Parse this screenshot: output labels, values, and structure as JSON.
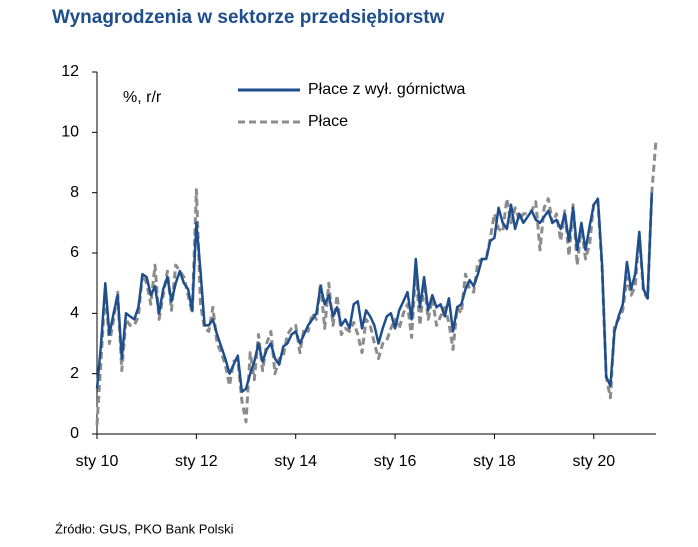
{
  "chart_data": {
    "type": "line",
    "title": "Wynagrodzenia w sektorze przedsiębiorstw",
    "y_label": "%, r/r",
    "source": "Źródło: GUS, PKO Bank Polski",
    "categories": [
      "sty 10",
      null,
      null,
      null,
      null,
      null,
      null,
      null,
      null,
      null,
      null,
      null,
      null,
      null,
      null,
      null,
      null,
      null,
      null,
      null,
      null,
      null,
      null,
      null,
      "sty 12",
      null,
      null,
      null,
      null,
      null,
      null,
      null,
      null,
      null,
      null,
      null,
      null,
      null,
      null,
      null,
      null,
      null,
      null,
      null,
      null,
      null,
      null,
      null,
      "sty 14",
      null,
      null,
      null,
      null,
      null,
      null,
      null,
      null,
      null,
      null,
      null,
      null,
      null,
      null,
      null,
      null,
      null,
      null,
      null,
      null,
      null,
      null,
      null,
      "sty 16",
      null,
      null,
      null,
      null,
      null,
      null,
      null,
      null,
      null,
      null,
      null,
      null,
      null,
      null,
      null,
      null,
      null,
      null,
      null,
      null,
      null,
      null,
      null,
      "sty 18",
      null,
      null,
      null,
      null,
      null,
      null,
      null,
      null,
      null,
      null,
      null,
      null,
      null,
      null,
      null,
      null,
      null,
      null,
      null,
      null,
      null,
      null,
      null,
      "sty 20",
      null,
      null,
      null,
      null,
      null,
      null,
      null,
      null,
      null,
      null,
      null,
      null,
      null,
      null,
      null
    ],
    "series": [
      {
        "name": "Płace z wył. górnictwa",
        "color": "#1f4e8c",
        "dash": false,
        "values": [
          1.5,
          3.0,
          5.0,
          3.3,
          4.0,
          4.6,
          2.5,
          4.0,
          3.9,
          3.8,
          4.2,
          5.3,
          5.2,
          4.6,
          4.9,
          4.0,
          4.8,
          5.2,
          4.4,
          5.0,
          5.4,
          5.0,
          4.8,
          4.1,
          7.0,
          5.4,
          3.6,
          3.6,
          3.8,
          3.3,
          2.9,
          2.5,
          2.0,
          2.3,
          2.6,
          1.4,
          1.5,
          2.0,
          2.4,
          3.0,
          2.4,
          2.8,
          3.0,
          2.5,
          2.3,
          2.9,
          3.0,
          3.3,
          3.4,
          3.0,
          3.3,
          3.6,
          3.8,
          4.0,
          4.9,
          4.3,
          4.6,
          3.9,
          4.2,
          3.6,
          3.8,
          3.5,
          4.3,
          4.4,
          3.5,
          4.1,
          3.9,
          3.6,
          3.0,
          3.5,
          3.9,
          4.0,
          3.5,
          4.1,
          4.4,
          4.7,
          3.8,
          5.8,
          4.2,
          5.2,
          4.1,
          4.6,
          4.2,
          4.3,
          3.9,
          4.5,
          3.4,
          4.2,
          4.3,
          4.8,
          5.1,
          4.9,
          5.3,
          5.8,
          5.8,
          6.4,
          6.5,
          7.5,
          7.0,
          6.8,
          7.6,
          6.8,
          7.3,
          7.0,
          7.2,
          7.4,
          7.1,
          7.0,
          7.2,
          7.4,
          7.0,
          7.1,
          6.8,
          7.3,
          6.4,
          7.5,
          6.1,
          7.0,
          6.1,
          6.9,
          7.6,
          7.8,
          5.6,
          1.9,
          1.6,
          3.4,
          3.9,
          4.3,
          5.7,
          4.8,
          5.3,
          6.7,
          4.8,
          4.5,
          8.0,
          null
        ]
      },
      {
        "name": "Płace",
        "color": "#8c8c8c",
        "dash": true,
        "values": [
          0.3,
          2.5,
          4.8,
          3.0,
          3.8,
          4.7,
          2.1,
          3.8,
          3.6,
          3.6,
          3.9,
          5.3,
          5.0,
          4.3,
          5.6,
          3.8,
          4.6,
          5.4,
          4.1,
          5.6,
          5.4,
          5.2,
          4.6,
          4.0,
          8.1,
          4.3,
          3.5,
          3.4,
          4.2,
          3.0,
          2.7,
          2.3,
          1.6,
          2.4,
          2.5,
          1.1,
          0.4,
          2.7,
          1.8,
          3.3,
          2.1,
          3.0,
          3.4,
          2.0,
          2.5,
          2.6,
          3.3,
          3.5,
          3.6,
          2.7,
          3.5,
          3.4,
          4.0,
          3.8,
          5.0,
          3.5,
          5.0,
          3.6,
          4.6,
          3.3,
          3.5,
          3.4,
          3.7,
          3.3,
          2.7,
          3.8,
          3.6,
          3.0,
          2.5,
          3.0,
          3.1,
          3.5,
          3.8,
          3.5,
          4.0,
          4.3,
          3.2,
          5.5,
          3.6,
          5.0,
          3.8,
          4.5,
          3.6,
          3.9,
          4.2,
          3.7,
          2.8,
          4.2,
          4.0,
          5.3,
          4.8,
          4.7,
          5.7,
          5.8,
          5.8,
          6.5,
          7.3,
          6.8,
          6.7,
          7.8,
          7.0,
          7.5,
          7.1,
          7.3,
          7.3,
          7.4,
          7.7,
          6.1,
          7.5,
          7.8,
          7.0,
          7.3,
          6.4,
          7.4,
          5.9,
          7.6,
          5.6,
          6.9,
          5.8,
          6.3,
          7.7,
          7.7,
          5.5,
          1.9,
          1.2,
          3.6,
          3.8,
          4.1,
          5.2,
          4.6,
          4.9,
          6.6,
          4.7,
          4.5,
          8.0,
          9.7
        ]
      }
    ],
    "ylim": [
      0,
      12
    ],
    "yticks": [
      0,
      2,
      4,
      6,
      8,
      10,
      12
    ],
    "grid": false,
    "legend": "top"
  }
}
